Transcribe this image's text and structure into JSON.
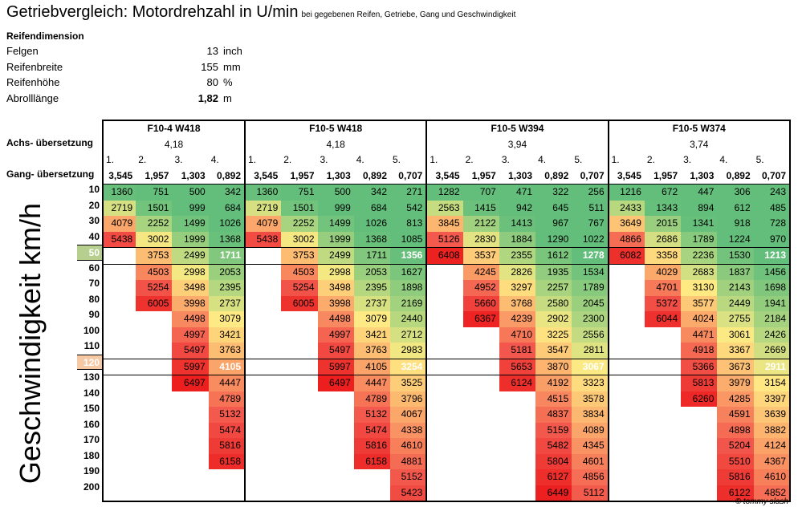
{
  "title": "Getriebvergleich: Motordrehzahl in U/min",
  "subtitle": "bei gegebenen Reifen, Getriebe, Gang und Geschwindigkeit",
  "tire": {
    "header": "Reifendimension",
    "rows": [
      {
        "label": "Felgen",
        "value": "13",
        "unit": "inch"
      },
      {
        "label": "Reifenbreite",
        "value": "155",
        "unit": "mm"
      },
      {
        "label": "Reifenhöhe",
        "value": "80",
        "unit": "%"
      },
      {
        "label": "Abrolllänge",
        "value": "1,82",
        "unit": "m"
      }
    ]
  },
  "vertical_label": "Geschwindigkeit km/h",
  "axle_label": "Achs- übersetzung",
  "gear_label": "Gang- übersetzung",
  "credit": "© tommy slash",
  "speeds": [
    "10",
    "20",
    "30",
    "40",
    "50",
    "60",
    "70",
    "80",
    "90",
    "100",
    "110",
    "120",
    "130",
    "140",
    "150",
    "160",
    "170",
    "180",
    "190",
    "200"
  ],
  "highlight_speeds": [
    "50",
    "120"
  ],
  "gearboxes": [
    {
      "name": "F10-4 W418",
      "axle": "4,18",
      "gear_numbers": [
        "1.",
        "2.",
        "3.",
        "4."
      ],
      "ratios": [
        "3,545",
        "1,957",
        "1,303",
        "0,892"
      ],
      "values": [
        [
          "1360",
          "751",
          "500",
          "342"
        ],
        [
          "2719",
          "1501",
          "999",
          "684"
        ],
        [
          "4079",
          "2252",
          "1499",
          "1026"
        ],
        [
          "5438",
          "3002",
          "1999",
          "1368"
        ],
        [
          "",
          "3753",
          "2499",
          "1711"
        ],
        [
          "",
          "4503",
          "2998",
          "2053"
        ],
        [
          "",
          "5254",
          "3498",
          "2395"
        ],
        [
          "",
          "6005",
          "3998",
          "2737"
        ],
        [
          "",
          "",
          "4498",
          "3079"
        ],
        [
          "",
          "",
          "4997",
          "3421"
        ],
        [
          "",
          "",
          "5497",
          "3763"
        ],
        [
          "",
          "",
          "5997",
          "4105"
        ],
        [
          "",
          "",
          "6497",
          "4447"
        ],
        [
          "",
          "",
          "",
          "4789"
        ],
        [
          "",
          "",
          "",
          "5132"
        ],
        [
          "",
          "",
          "",
          "5474"
        ],
        [
          "",
          "",
          "",
          "5816"
        ],
        [
          "",
          "",
          "",
          "6158"
        ],
        [
          "",
          "",
          "",
          ""
        ],
        [
          "",
          "",
          "",
          ""
        ]
      ]
    },
    {
      "name": "F10-5 W418",
      "axle": "4,18",
      "gear_numbers": [
        "1.",
        "2.",
        "3.",
        "4.",
        "5."
      ],
      "ratios": [
        "3,545",
        "1,957",
        "1,303",
        "0,892",
        "0,707"
      ],
      "values": [
        [
          "1360",
          "751",
          "500",
          "342",
          "271"
        ],
        [
          "2719",
          "1501",
          "999",
          "684",
          "542"
        ],
        [
          "4079",
          "2252",
          "1499",
          "1026",
          "813"
        ],
        [
          "5438",
          "3002",
          "1999",
          "1368",
          "1085"
        ],
        [
          "",
          "3753",
          "2499",
          "1711",
          "1356"
        ],
        [
          "",
          "4503",
          "2998",
          "2053",
          "1627"
        ],
        [
          "",
          "5254",
          "3498",
          "2395",
          "1898"
        ],
        [
          "",
          "6005",
          "3998",
          "2737",
          "2169"
        ],
        [
          "",
          "",
          "4498",
          "3079",
          "2440"
        ],
        [
          "",
          "",
          "4997",
          "3421",
          "2712"
        ],
        [
          "",
          "",
          "5497",
          "3763",
          "2983"
        ],
        [
          "",
          "",
          "5997",
          "4105",
          "3254"
        ],
        [
          "",
          "",
          "6497",
          "4447",
          "3525"
        ],
        [
          "",
          "",
          "",
          "4789",
          "3796"
        ],
        [
          "",
          "",
          "",
          "5132",
          "4067"
        ],
        [
          "",
          "",
          "",
          "5474",
          "4338"
        ],
        [
          "",
          "",
          "",
          "5816",
          "4610"
        ],
        [
          "",
          "",
          "",
          "6158",
          "4881"
        ],
        [
          "",
          "",
          "",
          "",
          "5152"
        ],
        [
          "",
          "",
          "",
          "",
          "5423"
        ]
      ]
    },
    {
      "name": "F10-5 W394",
      "axle": "3,94",
      "gear_numbers": [
        "1.",
        "2.",
        "3.",
        "4.",
        "5."
      ],
      "ratios": [
        "3,545",
        "1,957",
        "1,303",
        "0,892",
        "0,707"
      ],
      "values": [
        [
          "1282",
          "707",
          "471",
          "322",
          "256"
        ],
        [
          "2563",
          "1415",
          "942",
          "645",
          "511"
        ],
        [
          "3845",
          "2122",
          "1413",
          "967",
          "767"
        ],
        [
          "5126",
          "2830",
          "1884",
          "1290",
          "1022"
        ],
        [
          "6408",
          "3537",
          "2355",
          "1612",
          "1278"
        ],
        [
          "",
          "4245",
          "2826",
          "1935",
          "1534"
        ],
        [
          "",
          "4952",
          "3297",
          "2257",
          "1789"
        ],
        [
          "",
          "5660",
          "3768",
          "2580",
          "2045"
        ],
        [
          "",
          "6367",
          "4239",
          "2902",
          "2300"
        ],
        [
          "",
          "",
          "4710",
          "3225",
          "2556"
        ],
        [
          "",
          "",
          "5181",
          "3547",
          "2811"
        ],
        [
          "",
          "",
          "5653",
          "3870",
          "3067"
        ],
        [
          "",
          "",
          "6124",
          "4192",
          "3323"
        ],
        [
          "",
          "",
          "",
          "4515",
          "3578"
        ],
        [
          "",
          "",
          "",
          "4837",
          "3834"
        ],
        [
          "",
          "",
          "",
          "5159",
          "4089"
        ],
        [
          "",
          "",
          "",
          "5482",
          "4345"
        ],
        [
          "",
          "",
          "",
          "5804",
          "4601"
        ],
        [
          "",
          "",
          "",
          "6127",
          "4856"
        ],
        [
          "",
          "",
          "",
          "6449",
          "5112"
        ]
      ]
    },
    {
      "name": "F10-5 W374",
      "axle": "3,74",
      "gear_numbers": [
        "1.",
        "2.",
        "3.",
        "4.",
        "5."
      ],
      "ratios": [
        "3,545",
        "1,957",
        "1,303",
        "0,892",
        "0,707"
      ],
      "values": [
        [
          "1216",
          "672",
          "447",
          "306",
          "243"
        ],
        [
          "2433",
          "1343",
          "894",
          "612",
          "485"
        ],
        [
          "3649",
          "2015",
          "1341",
          "918",
          "728"
        ],
        [
          "4866",
          "2686",
          "1789",
          "1224",
          "970"
        ],
        [
          "6082",
          "3358",
          "2236",
          "1530",
          "1213"
        ],
        [
          "",
          "4029",
          "2683",
          "1837",
          "1456"
        ],
        [
          "",
          "4701",
          "3130",
          "2143",
          "1698"
        ],
        [
          "",
          "5372",
          "3577",
          "2449",
          "1941"
        ],
        [
          "",
          "6044",
          "4024",
          "2755",
          "2184"
        ],
        [
          "",
          "",
          "4471",
          "3061",
          "2426"
        ],
        [
          "",
          "",
          "4918",
          "3367",
          "2669"
        ],
        [
          "",
          "",
          "5366",
          "3673",
          "2911"
        ],
        [
          "",
          "",
          "5813",
          "3979",
          "3154"
        ],
        [
          "",
          "",
          "6260",
          "4285",
          "3397"
        ],
        [
          "",
          "",
          "",
          "4591",
          "3639"
        ],
        [
          "",
          "",
          "",
          "4898",
          "3882"
        ],
        [
          "",
          "",
          "",
          "5204",
          "4124"
        ],
        [
          "",
          "",
          "",
          "5510",
          "4367"
        ],
        [
          "",
          "",
          "",
          "5816",
          "4610"
        ],
        [
          "",
          "",
          "",
          "6122",
          "4852"
        ]
      ]
    }
  ]
}
